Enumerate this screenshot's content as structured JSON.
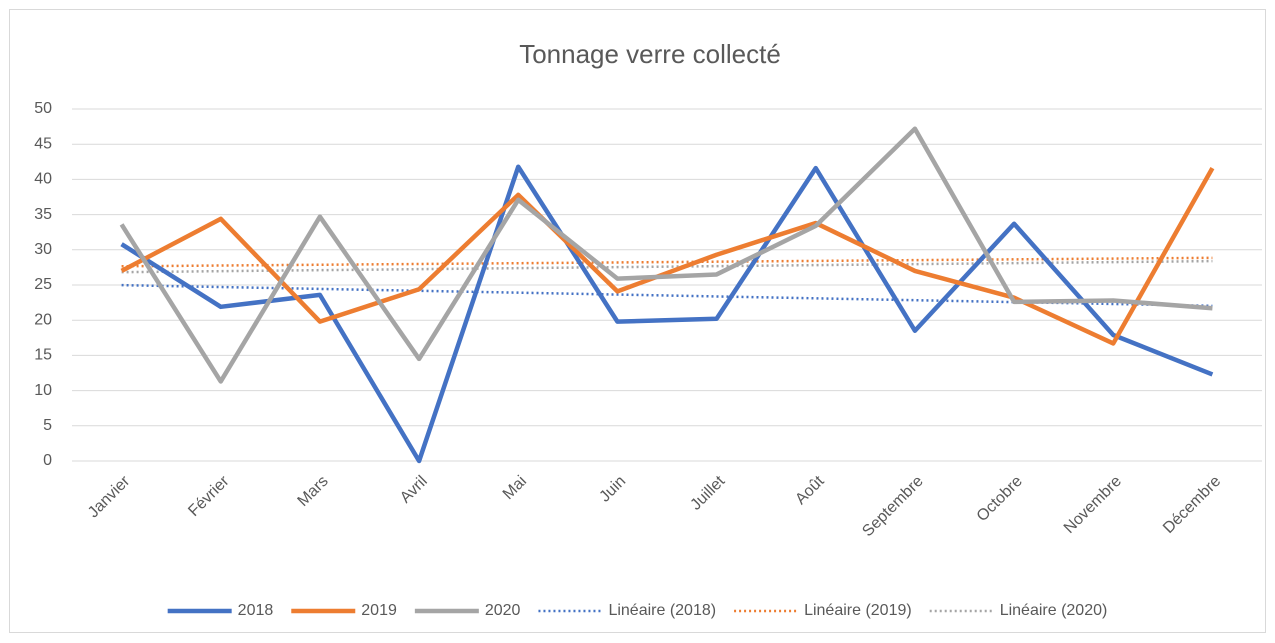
{
  "chart_data": {
    "type": "line",
    "title": "Tonnage verre collecté",
    "categories": [
      "Janvier",
      "Février",
      "Mars",
      "Avril",
      "Mai",
      "Juin",
      "Juillet",
      "Août",
      "Septembre",
      "Octobre",
      "Novembre",
      "Décembre"
    ],
    "series": [
      {
        "name": "2018",
        "color": "#4472c4",
        "values": [
          30.8,
          21.9,
          23.6,
          0,
          41.8,
          19.8,
          20.2,
          41.6,
          18.5,
          33.7,
          17.9,
          12.3
        ],
        "trendline": {
          "type": "linear",
          "name": "Linéaire (2018)"
        }
      },
      {
        "name": "2019",
        "color": "#ed7d31",
        "values": [
          27,
          34.4,
          19.8,
          24.4,
          37.8,
          24.1,
          29.3,
          33.8,
          27,
          23.2,
          16.7,
          41.6
        ],
        "trendline": {
          "type": "linear",
          "name": "Linéaire (2019)"
        }
      },
      {
        "name": "2020",
        "color": "#a5a5a5",
        "values": [
          33.6,
          11.3,
          34.7,
          14.5,
          37.1,
          25.9,
          26.5,
          33.4,
          47.2,
          22.6,
          22.8,
          21.7
        ],
        "trendline": {
          "type": "linear",
          "name": "Linéaire (2020)"
        }
      }
    ],
    "ylim": [
      0,
      50
    ],
    "yticks": [
      0,
      5,
      10,
      15,
      20,
      25,
      30,
      35,
      40,
      45,
      50
    ],
    "grid": true,
    "legend": "bottom"
  }
}
